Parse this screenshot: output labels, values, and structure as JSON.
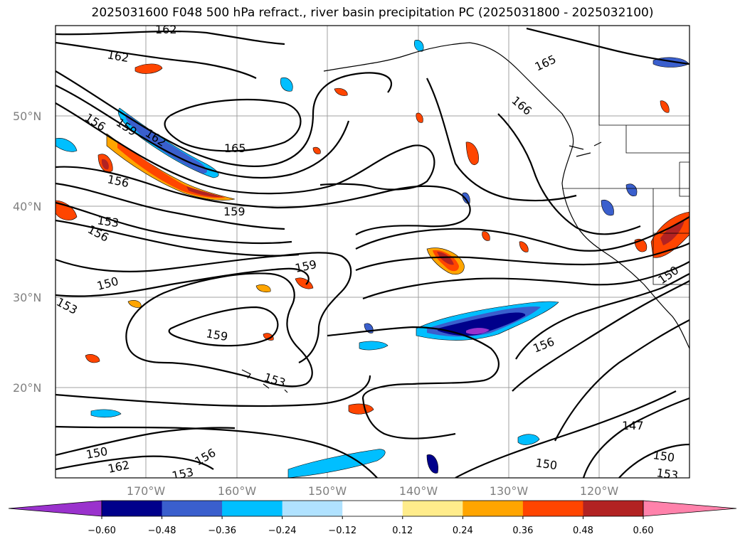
{
  "title": "2025031600 F048 500 hPa refract., river basin precipitation PC (2025031800 - 2025032100)",
  "map": {
    "lat_labels": [
      "50°N",
      "40°N",
      "30°N",
      "20°N"
    ],
    "lon_labels": [
      "170°W",
      "160°W",
      "150°W",
      "140°W",
      "130°W",
      "120°W"
    ],
    "contour_labels": [
      "162",
      "162",
      "165",
      "156",
      "159",
      "162",
      "165",
      "166",
      "156",
      "159",
      "153",
      "156",
      "159",
      "150",
      "153",
      "159",
      "153",
      "150",
      "156",
      "150",
      "162",
      "153",
      "156",
      "147",
      "150",
      "150",
      "153"
    ]
  },
  "colorbar": {
    "tick_labels": [
      "−0.60",
      "−0.48",
      "−0.36",
      "−0.24",
      "−0.12",
      "0.12",
      "0.24",
      "0.36",
      "0.48",
      "0.60"
    ],
    "colors": [
      "#9a32cd",
      "#00008b",
      "#3a5fcd",
      "#00bfff",
      "#b0e2ff",
      "#ffffff",
      "#ffec8b",
      "#ffa500",
      "#ff4500",
      "#b22222",
      "#ff82ab"
    ]
  }
}
